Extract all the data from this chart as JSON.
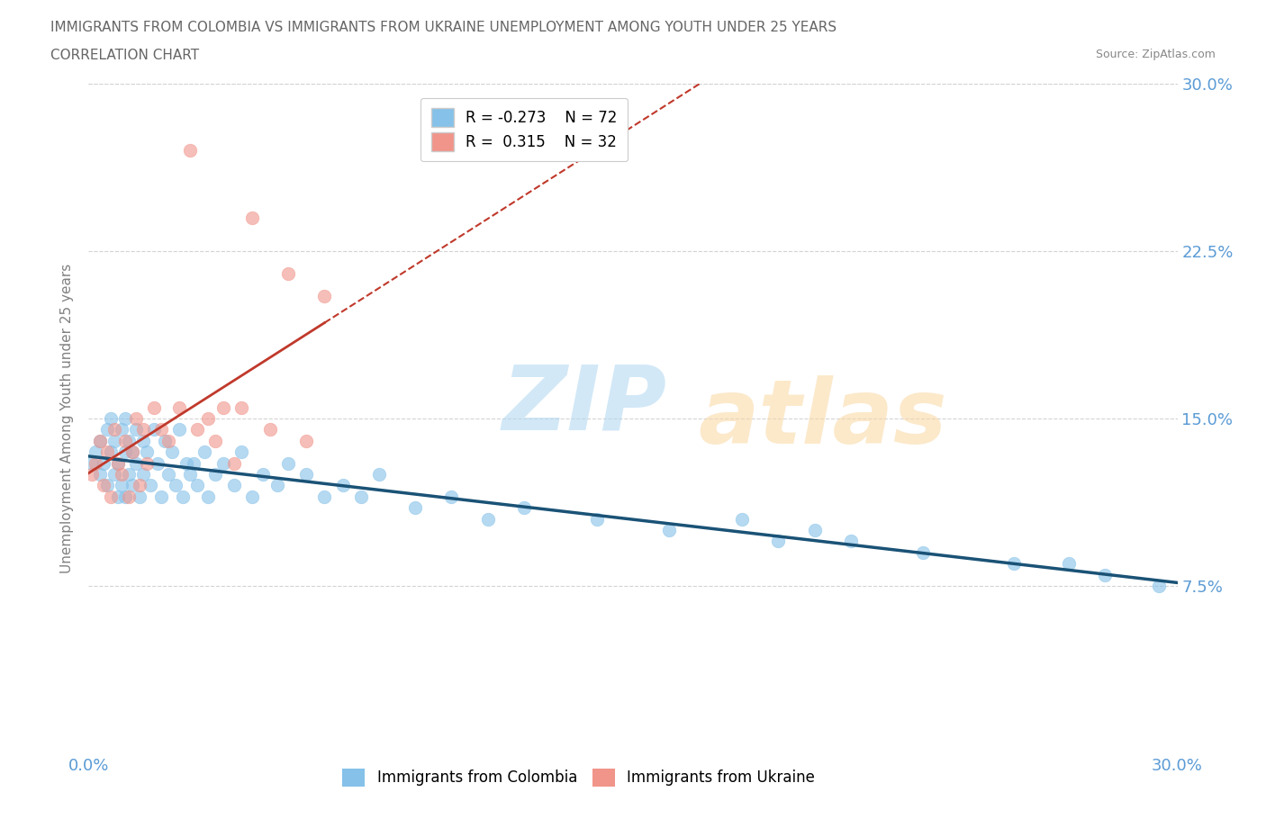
{
  "title_line1": "IMMIGRANTS FROM COLOMBIA VS IMMIGRANTS FROM UKRAINE UNEMPLOYMENT AMONG YOUTH UNDER 25 YEARS",
  "title_line2": "CORRELATION CHART",
  "source_text": "Source: ZipAtlas.com",
  "ylabel": "Unemployment Among Youth under 25 years",
  "xlim": [
    0.0,
    0.3
  ],
  "ylim": [
    0.0,
    0.3
  ],
  "xticks": [
    0.0,
    0.075,
    0.15,
    0.225,
    0.3
  ],
  "yticks": [
    0.075,
    0.15,
    0.225,
    0.3
  ],
  "right_yticklabels": [
    "7.5%",
    "15.0%",
    "22.5%",
    "30.0%"
  ],
  "colombia_color": "#85c1e9",
  "ukraine_color": "#f1948a",
  "colombia_line_color": "#1a5276",
  "ukraine_line_color": "#c0392b",
  "R_colombia": -0.273,
  "N_colombia": 72,
  "R_ukraine": 0.315,
  "N_ukraine": 32,
  "colombia_scatter_x": [
    0.001,
    0.002,
    0.003,
    0.003,
    0.004,
    0.005,
    0.005,
    0.006,
    0.006,
    0.007,
    0.007,
    0.008,
    0.008,
    0.009,
    0.009,
    0.01,
    0.01,
    0.01,
    0.011,
    0.011,
    0.012,
    0.012,
    0.013,
    0.013,
    0.014,
    0.015,
    0.015,
    0.016,
    0.017,
    0.018,
    0.019,
    0.02,
    0.021,
    0.022,
    0.023,
    0.024,
    0.025,
    0.026,
    0.027,
    0.028,
    0.029,
    0.03,
    0.032,
    0.033,
    0.035,
    0.037,
    0.04,
    0.042,
    0.045,
    0.048,
    0.052,
    0.055,
    0.06,
    0.065,
    0.07,
    0.075,
    0.08,
    0.09,
    0.1,
    0.11,
    0.12,
    0.14,
    0.16,
    0.18,
    0.19,
    0.2,
    0.21,
    0.23,
    0.255,
    0.27,
    0.28,
    0.295
  ],
  "colombia_scatter_y": [
    0.13,
    0.135,
    0.125,
    0.14,
    0.13,
    0.145,
    0.12,
    0.135,
    0.15,
    0.125,
    0.14,
    0.115,
    0.13,
    0.145,
    0.12,
    0.135,
    0.15,
    0.115,
    0.14,
    0.125,
    0.135,
    0.12,
    0.145,
    0.13,
    0.115,
    0.14,
    0.125,
    0.135,
    0.12,
    0.145,
    0.13,
    0.115,
    0.14,
    0.125,
    0.135,
    0.12,
    0.145,
    0.115,
    0.13,
    0.125,
    0.13,
    0.12,
    0.135,
    0.115,
    0.125,
    0.13,
    0.12,
    0.135,
    0.115,
    0.125,
    0.12,
    0.13,
    0.125,
    0.115,
    0.12,
    0.115,
    0.125,
    0.11,
    0.115,
    0.105,
    0.11,
    0.105,
    0.1,
    0.105,
    0.095,
    0.1,
    0.095,
    0.09,
    0.085,
    0.085,
    0.08,
    0.075
  ],
  "ukraine_scatter_x": [
    0.001,
    0.002,
    0.003,
    0.004,
    0.005,
    0.006,
    0.007,
    0.008,
    0.009,
    0.01,
    0.011,
    0.012,
    0.013,
    0.014,
    0.015,
    0.016,
    0.018,
    0.02,
    0.022,
    0.025,
    0.028,
    0.03,
    0.033,
    0.035,
    0.037,
    0.04,
    0.042,
    0.045,
    0.05,
    0.055,
    0.06,
    0.065
  ],
  "ukraine_scatter_y": [
    0.125,
    0.13,
    0.14,
    0.12,
    0.135,
    0.115,
    0.145,
    0.13,
    0.125,
    0.14,
    0.115,
    0.135,
    0.15,
    0.12,
    0.145,
    0.13,
    0.155,
    0.145,
    0.14,
    0.155,
    0.27,
    0.145,
    0.15,
    0.14,
    0.155,
    0.13,
    0.155,
    0.24,
    0.145,
    0.215,
    0.14,
    0.205
  ],
  "colombia_trendline": [
    0.138,
    0.075
  ],
  "ukraine_trendline_solid": [
    0.12,
    0.215
  ],
  "ukraine_trendline_dashed_end": 0.25
}
